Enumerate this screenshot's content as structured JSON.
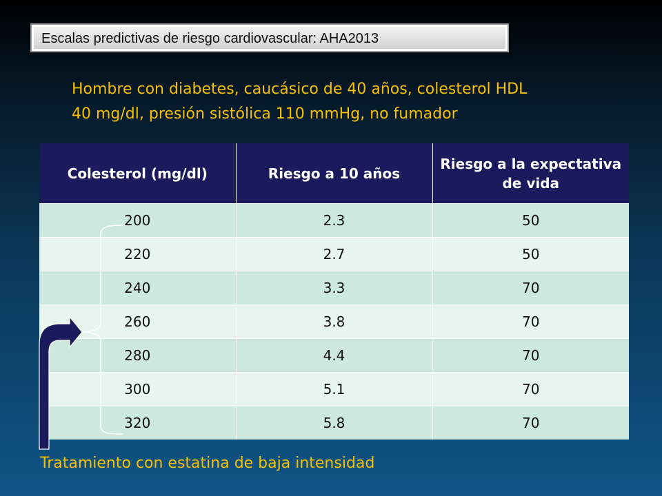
{
  "slide_title": "Escalas predictivas de riesgo cardiovascular: AHA2013",
  "subtitle": {
    "line1": "Hombre con diabetes, caucásico de 40 años, colesterol HDL",
    "line2": "40 mg/dl, presión sistólica 110 mmHg, no fumador"
  },
  "table": {
    "headers": [
      "Colesterol (mg/dl)",
      "Riesgo a 10 años",
      "Riesgo a la expectativa de vida"
    ],
    "rows": [
      [
        "200",
        "2.3",
        "50"
      ],
      [
        "220",
        "2.7",
        "50"
      ],
      [
        "240",
        "3.3",
        "70"
      ],
      [
        "260",
        "3.8",
        "70"
      ],
      [
        "280",
        "4.4",
        "70"
      ],
      [
        "300",
        "5.1",
        "70"
      ],
      [
        "320",
        "5.8",
        "70"
      ]
    ]
  },
  "footer": "Tratamiento con estatina de baja intensidad",
  "colors": {
    "header_bg": "#1a1a5c",
    "row_odd": "#cde9df",
    "row_even": "#e8f4f0",
    "highlight_text": "#f5c000",
    "arrow": "#1a1a5c"
  },
  "icons": {
    "bracket": "bracket-icon",
    "arrow": "arrow-up-right-icon"
  }
}
